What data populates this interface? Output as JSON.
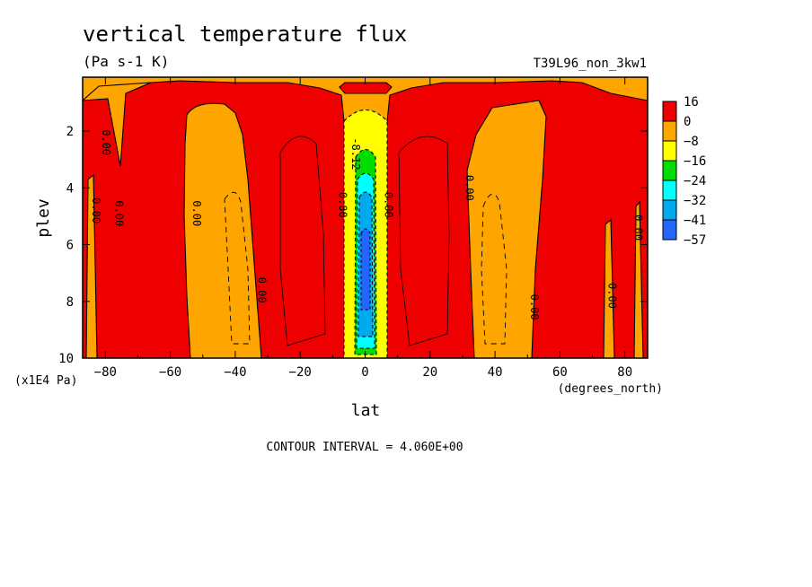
{
  "chart_data": {
    "type": "heatmap",
    "title": "vertical temperature flux",
    "subtitle": "(Pa s-1 K)",
    "run_label": "T39L96_non_3kw1",
    "xlabel": "lat",
    "x_units": "(degrees_north)",
    "ylabel": "plev",
    "y_units": "(x1E4 Pa)",
    "xlim": [
      -87,
      87
    ],
    "ylim": [
      10,
      0.1
    ],
    "x_ticks": [
      -80,
      -60,
      -40,
      -20,
      0,
      20,
      40,
      60,
      80
    ],
    "x_tick_labels": [
      "−80",
      "−60",
      "−40",
      "−20",
      "0",
      "20",
      "40",
      "60",
      "80"
    ],
    "y_ticks": [
      2,
      4,
      6,
      8,
      10
    ],
    "y_tick_labels": [
      "2",
      "4",
      "6",
      "8",
      "10"
    ],
    "footer": "CONTOUR INTERVAL = 4.060E+00",
    "legend": {
      "placement": "right",
      "levels": [
        {
          "label": "16",
          "color": "#ee0000"
        },
        {
          "label": "0",
          "color": "#ffa500"
        },
        {
          "label": "−8",
          "color": "#ffff00"
        },
        {
          "label": "−16",
          "color": "#00dd00"
        },
        {
          "label": "−24",
          "color": "#00ffff"
        },
        {
          "label": "−32",
          "color": "#00aaee"
        },
        {
          "label": "−41",
          "color": "#2266ff"
        },
        {
          "label": "−57",
          "color": ""
        }
      ]
    },
    "contour_labels": [
      {
        "text": "0.00",
        "lat": -80,
        "plev": 2.4,
        "rotate": 90
      },
      {
        "text": "0.00",
        "lat": -83,
        "plev": 4.8,
        "rotate": 90
      },
      {
        "text": "0.00",
        "lat": -76,
        "plev": 4.9,
        "rotate": 90
      },
      {
        "text": "0.00",
        "lat": -52,
        "plev": 4.9,
        "rotate": 90
      },
      {
        "text": "0.00",
        "lat": -32,
        "plev": 7.6,
        "rotate": 90
      },
      {
        "text": "0.00",
        "lat": -7,
        "plev": 4.6,
        "rotate": 90
      },
      {
        "text": "-8.12",
        "lat": -3,
        "plev": 2.8,
        "rotate": 90
      },
      {
        "text": "0.00",
        "lat": 7,
        "plev": 4.6,
        "rotate": 90
      },
      {
        "text": "0.00",
        "lat": 32,
        "plev": 4.0,
        "rotate": 90
      },
      {
        "text": "0.00",
        "lat": 52,
        "plev": 8.2,
        "rotate": 90
      },
      {
        "text": "0.00",
        "lat": 76,
        "plev": 7.8,
        "rotate": 90
      },
      {
        "text": "0.00",
        "lat": 84,
        "plev": 5.4,
        "rotate": 90
      }
    ]
  }
}
